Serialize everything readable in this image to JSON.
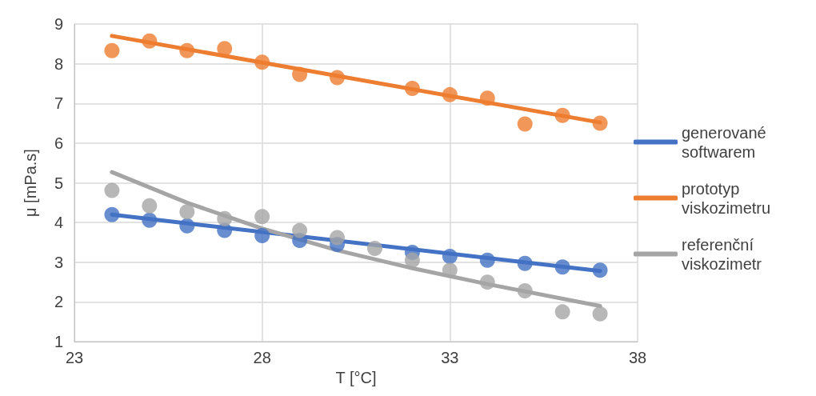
{
  "chart_data": {
    "type": "scatter",
    "xlabel": "T [°C]",
    "ylabel": "μ [mPa.s]",
    "xlim": [
      23,
      38
    ],
    "xticks": [
      23,
      28,
      33,
      38
    ],
    "ylim": [
      1,
      9
    ],
    "yticks": [
      1,
      2,
      3,
      4,
      5,
      6,
      7,
      8,
      9
    ],
    "grid": true,
    "legend": "right",
    "line_style": "solid",
    "series": [
      {
        "marker": "circle",
        "color": "#4472c4",
        "x": [
          24,
          25,
          26,
          27,
          28,
          29,
          30,
          31,
          32,
          33,
          34,
          35,
          36,
          37
        ],
        "values": [
          4.2,
          4.06,
          3.92,
          3.8,
          3.67,
          3.55,
          3.45,
          null,
          3.25,
          3.15,
          3.05,
          2.97,
          2.88,
          2.8
        ]
      },
      {
        "marker": "circle",
        "color": "#ed7d31",
        "x": [
          24,
          25,
          26,
          27,
          28,
          29,
          30,
          32,
          33,
          34,
          35,
          36,
          37
        ],
        "values": [
          8.33,
          8.57,
          8.33,
          8.38,
          8.04,
          7.73,
          7.65,
          7.38,
          7.22,
          7.13,
          6.48,
          6.7,
          6.5
        ]
      },
      {
        "marker": "circle",
        "color": "#a5a5a5",
        "x": [
          24,
          25,
          26,
          27,
          28,
          29,
          30,
          31,
          32,
          33,
          34,
          35,
          36,
          37
        ],
        "values": [
          4.81,
          4.42,
          4.27,
          4.1,
          4.15,
          3.8,
          3.62,
          3.35,
          3.05,
          2.8,
          2.5,
          2.28,
          1.75,
          1.7
        ]
      },
      {
        "type": "line",
        "marker": "none",
        "name": "generované softwarem",
        "color": "#4472c4",
        "x": [
          24,
          37
        ],
        "values": [
          4.2,
          2.78
        ]
      },
      {
        "type": "line",
        "marker": "none",
        "name": "prototyp viskozimetru",
        "color": "#ed7d31",
        "x": [
          24,
          37
        ],
        "values": [
          8.7,
          6.52
        ]
      },
      {
        "type": "line",
        "marker": "none",
        "name": "referenční viskozimetr",
        "color": "#a5a5a5",
        "x": [
          24,
          26,
          28,
          30,
          32,
          34,
          37
        ],
        "values": [
          5.27,
          4.5,
          3.85,
          3.3,
          2.85,
          2.45,
          1.9
        ]
      }
    ]
  }
}
